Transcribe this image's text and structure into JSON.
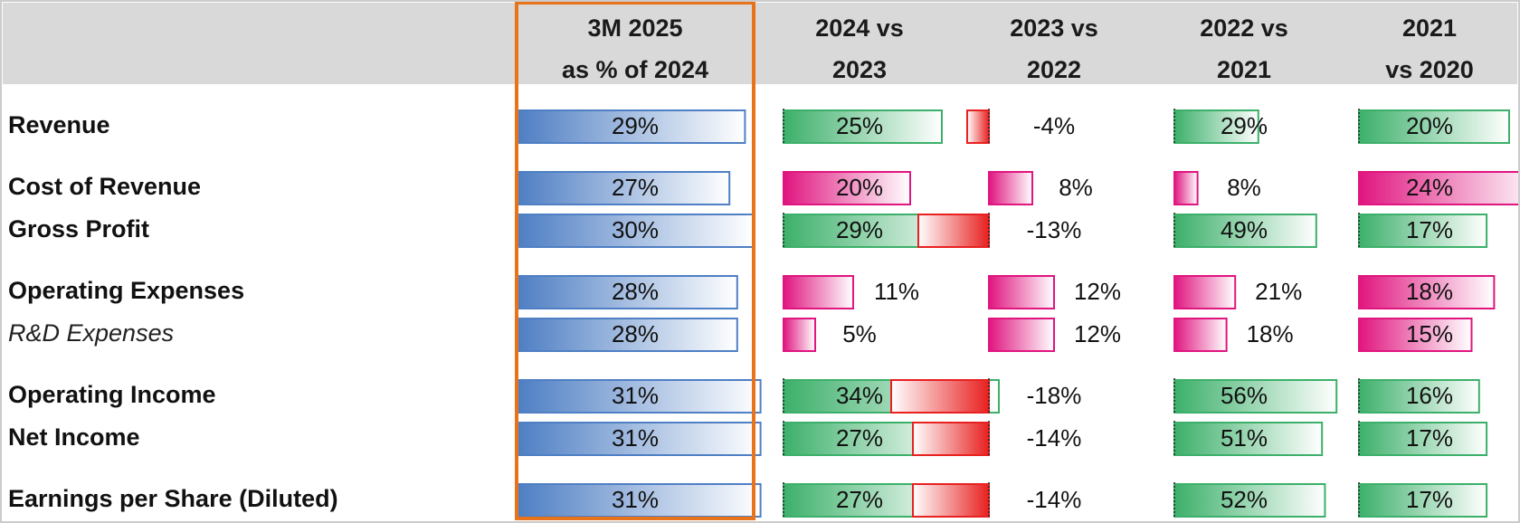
{
  "chart_data": {
    "type": "bar",
    "columns": [
      {
        "id": "c0",
        "header": [
          "3M 2025",
          "as % of 2024"
        ],
        "kind": "share",
        "highlighted": true
      },
      {
        "id": "c1",
        "header": [
          "2024 vs",
          "2023"
        ],
        "kind": "growth"
      },
      {
        "id": "c2",
        "header": [
          "2023 vs",
          "2022"
        ],
        "kind": "growth"
      },
      {
        "id": "c3",
        "header": [
          "2022 vs",
          "2021"
        ],
        "kind": "growth"
      },
      {
        "id": "c4",
        "header": [
          "2021",
          "vs 2020"
        ],
        "kind": "growth"
      }
    ],
    "rows": [
      {
        "label": "Revenue",
        "italic": false,
        "type": "income",
        "values": [
          29,
          25,
          -4,
          29,
          20
        ],
        "labels": [
          "29%",
          "25%",
          "-4%",
          "29%",
          "20%"
        ]
      },
      {
        "label": "Cost of Revenue",
        "italic": false,
        "type": "cost",
        "values": [
          27,
          20,
          8,
          8,
          24
        ],
        "labels": [
          "27%",
          "20%",
          "8%",
          "8%",
          "24%"
        ]
      },
      {
        "label": "Gross Profit",
        "italic": false,
        "type": "income",
        "values": [
          30,
          29,
          -13,
          49,
          17
        ],
        "labels": [
          "30%",
          "29%",
          "-13%",
          "49%",
          "17%"
        ]
      },
      {
        "label": "Operating Expenses",
        "italic": false,
        "type": "cost",
        "values": [
          28,
          11,
          12,
          21,
          18
        ],
        "labels": [
          "28%",
          "11%",
          "12%",
          "21%",
          "18%"
        ]
      },
      {
        "label": "R&D Expenses",
        "italic": true,
        "type": "cost",
        "values": [
          28,
          5,
          12,
          18,
          15
        ],
        "labels": [
          "28%",
          "5%",
          "12%",
          "18%",
          "15%"
        ]
      },
      {
        "label": "Operating Income",
        "italic": false,
        "type": "income",
        "values": [
          31,
          34,
          -18,
          56,
          16
        ],
        "labels": [
          "31%",
          "34%",
          "-18%",
          "56%",
          "16%"
        ]
      },
      {
        "label": "Net Income",
        "italic": false,
        "type": "income",
        "values": [
          31,
          27,
          -14,
          51,
          17
        ],
        "labels": [
          "31%",
          "27%",
          "-14%",
          "51%",
          "17%"
        ]
      },
      {
        "label": "Earnings per Share (Diluted)",
        "italic": false,
        "type": "income",
        "values": [
          31,
          27,
          -14,
          52,
          17
        ],
        "labels": [
          "31%",
          "27%",
          "-14%",
          "52%",
          "17%"
        ]
      }
    ],
    "colors": {
      "share": "#4f7fc4",
      "positive_income": "#3cb06a",
      "cost_increase": "#e0157f",
      "negative": "#e82020",
      "highlight_border": "#e8731a",
      "header_background": "#d9d9d9"
    },
    "legend": "none",
    "grid": false
  }
}
